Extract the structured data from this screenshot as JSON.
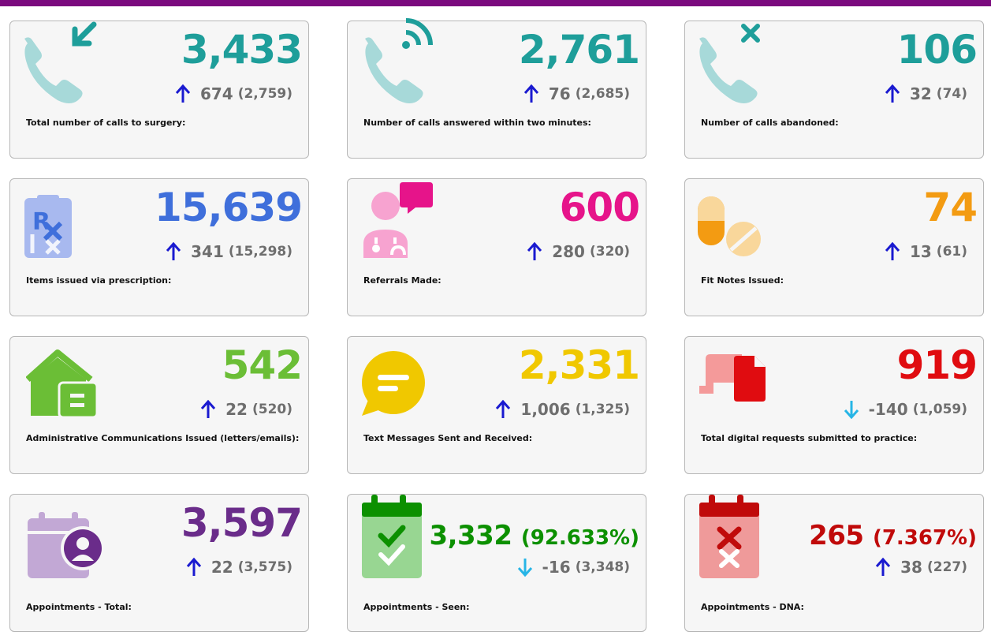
{
  "colors": {
    "topbar": "#7b0a7e",
    "teal": "#1e9e9a",
    "blue": "#3f6fdb",
    "pink": "#e6148a",
    "orange": "#f39b12",
    "green": "#6bbe36",
    "yellow": "#f0c800",
    "red": "#e00c10",
    "purple": "#6a2c8a",
    "dark_green": "#0c9000",
    "dark_red": "#c00a0a",
    "arrow_up": "#1a1ad0",
    "arrow_down": "#27b5e6"
  },
  "cards": [
    {
      "value": "3,433",
      "delta": "674",
      "previous": "(2,759)",
      "direction": "up",
      "label": "Total number of calls to surgery:",
      "icon": "incoming-call-icon"
    },
    {
      "value": "2,761",
      "delta": "76",
      "previous": "(2,685)",
      "direction": "up",
      "label": "Number of calls answered within two minutes:",
      "icon": "answered-call-icon"
    },
    {
      "value": "106",
      "delta": "32",
      "previous": "(74)",
      "direction": "up",
      "label": "Number of calls abandoned:",
      "icon": "abandoned-call-icon"
    },
    {
      "value": "15,639",
      "delta": "341",
      "previous": "(15,298)",
      "direction": "up",
      "label": "Items issued via prescription:",
      "icon": "prescription-icon"
    },
    {
      "value": "600",
      "delta": "280",
      "previous": "(320)",
      "direction": "up",
      "label": "Referrals Made:",
      "icon": "doctor-referral-icon"
    },
    {
      "value": "74",
      "delta": "13",
      "previous": "(61)",
      "direction": "up",
      "label": "Fit Notes Issued:",
      "icon": "pills-icon"
    },
    {
      "value": "542",
      "delta": "22",
      "previous": "(520)",
      "direction": "up",
      "label": "Administrative Communications Issued (letters/emails):",
      "icon": "house-letter-icon"
    },
    {
      "value": "2,331",
      "delta": "1,006",
      "previous": "(1,325)",
      "direction": "up",
      "label": "Text Messages Sent and Received:",
      "icon": "speech-bubble-icon"
    },
    {
      "value": "919",
      "delta": "-140",
      "previous": "(1,059)",
      "direction": "down",
      "label": "Total digital requests submitted to practice:",
      "icon": "digital-request-icon"
    },
    {
      "value": "3,597",
      "delta": "22",
      "previous": "(3,575)",
      "direction": "up",
      "label": "Appointments - Total:",
      "icon": "calendar-person-icon"
    },
    {
      "value": "3,332",
      "percent": "(92.633%)",
      "delta": "-16",
      "previous": "(3,348)",
      "direction": "down",
      "label": "Appointments - Seen:",
      "icon": "calendar-check-icon"
    },
    {
      "value": "265",
      "percent": "(7.367%)",
      "delta": "38",
      "previous": "(227)",
      "direction": "up",
      "label": "Appointments - DNA:",
      "icon": "calendar-cross-icon"
    }
  ]
}
